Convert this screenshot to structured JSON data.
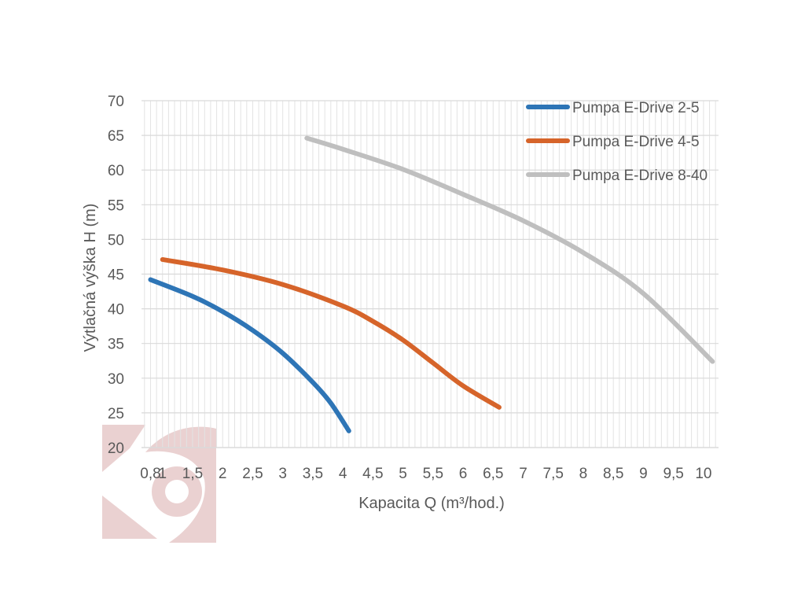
{
  "chart_data": {
    "type": "line",
    "title": "",
    "xlabel": "Kapacita Q (m³/hod.)",
    "ylabel": "Výtlačná výška H (m)",
    "xlim": [
      0.65,
      10.25
    ],
    "ylim": [
      20,
      70
    ],
    "x_ticks": [
      {
        "value": 0.8,
        "label": "0,8"
      },
      {
        "value": 1,
        "label": "1"
      },
      {
        "value": 1.5,
        "label": "1,5"
      },
      {
        "value": 2,
        "label": "2"
      },
      {
        "value": 2.5,
        "label": "2,5"
      },
      {
        "value": 3,
        "label": "3"
      },
      {
        "value": 3.5,
        "label": "3,5"
      },
      {
        "value": 4,
        "label": "4"
      },
      {
        "value": 4.5,
        "label": "4,5"
      },
      {
        "value": 5,
        "label": "5"
      },
      {
        "value": 5.5,
        "label": "5,5"
      },
      {
        "value": 6,
        "label": "6"
      },
      {
        "value": 6.5,
        "label": "6,5"
      },
      {
        "value": 7,
        "label": "7"
      },
      {
        "value": 7.5,
        "label": "7,5"
      },
      {
        "value": 8,
        "label": "8"
      },
      {
        "value": 8.5,
        "label": "8,5"
      },
      {
        "value": 9,
        "label": "9"
      },
      {
        "value": 9.5,
        "label": "9,5"
      },
      {
        "value": 10,
        "label": "10"
      }
    ],
    "y_ticks": [
      20,
      25,
      30,
      35,
      40,
      45,
      50,
      55,
      60,
      65,
      70
    ],
    "grid": true,
    "legend_position": "top-right",
    "series": [
      {
        "name": "Pumpa E-Drive 2-5",
        "color": "#2E75B6",
        "points": [
          [
            0.8,
            44.2
          ],
          [
            1.5,
            41.8
          ],
          [
            2.0,
            39.6
          ],
          [
            2.5,
            36.9
          ],
          [
            3.0,
            33.6
          ],
          [
            3.5,
            29.4
          ],
          [
            3.8,
            26.4
          ],
          [
            4.1,
            22.4
          ]
        ]
      },
      {
        "name": "Pumpa E-Drive 4-5",
        "color": "#D6642A",
        "points": [
          [
            1.0,
            47.1
          ],
          [
            2.0,
            45.6
          ],
          [
            3.0,
            43.5
          ],
          [
            4.0,
            40.4
          ],
          [
            4.5,
            38.2
          ],
          [
            5.0,
            35.5
          ],
          [
            5.5,
            32.2
          ],
          [
            6.0,
            28.9
          ],
          [
            6.6,
            25.8
          ]
        ]
      },
      {
        "name": "Pumpa E-Drive 8-40",
        "color": "#BFBFBF",
        "points": [
          [
            3.4,
            64.6
          ],
          [
            4.0,
            63.0
          ],
          [
            5.0,
            60.1
          ],
          [
            6.0,
            56.5
          ],
          [
            7.0,
            52.7
          ],
          [
            8.0,
            48.1
          ],
          [
            9.0,
            42.2
          ],
          [
            10.15,
            32.4
          ]
        ]
      }
    ]
  }
}
